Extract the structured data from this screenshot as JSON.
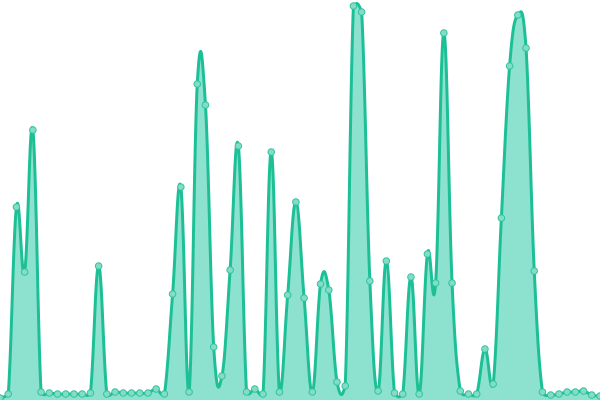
{
  "chart_data": {
    "type": "area",
    "title": "",
    "xlabel": "",
    "ylabel": "",
    "grid": false,
    "legend": "none",
    "smooth": true,
    "ylim": [
      0,
      400
    ],
    "x": [
      0,
      1,
      2,
      3,
      4,
      5,
      6,
      7,
      8,
      9,
      10,
      11,
      12,
      13,
      14,
      15,
      16,
      17,
      18,
      19,
      20,
      21,
      22,
      23,
      24,
      25,
      26,
      27,
      28,
      29,
      30,
      31,
      32,
      33,
      34,
      35,
      36,
      37,
      38,
      39,
      40,
      41,
      42,
      43,
      44,
      45,
      46,
      47,
      48,
      49,
      50,
      51,
      52,
      53,
      54,
      55,
      56,
      57,
      58,
      59,
      60,
      61,
      62,
      63,
      64,
      65,
      66,
      67,
      68,
      69,
      70,
      71,
      72,
      73
    ],
    "series": [
      {
        "values": [
          2,
          6,
          193,
          128,
          270,
          8,
          7,
          6,
          6,
          6,
          6,
          7,
          134,
          6,
          8,
          7,
          7,
          7,
          7,
          11,
          6,
          106,
          213,
          8,
          316,
          295,
          53,
          24,
          130,
          254,
          8,
          11,
          6,
          248,
          8,
          105,
          198,
          102,
          8,
          116,
          110,
          18,
          14,
          394,
          388,
          119,
          9,
          139,
          7,
          6,
          123,
          6,
          146,
          117,
          367,
          117,
          9,
          6,
          6,
          51,
          16,
          182,
          334,
          385,
          352,
          129,
          8,
          5,
          6,
          8,
          8,
          9,
          5,
          4
        ]
      }
    ],
    "colors": {
      "line": "#1dbf97",
      "fill": "#8de1cf",
      "point_fill": "#82dcc6",
      "point_stroke": "#2fc39c"
    }
  }
}
